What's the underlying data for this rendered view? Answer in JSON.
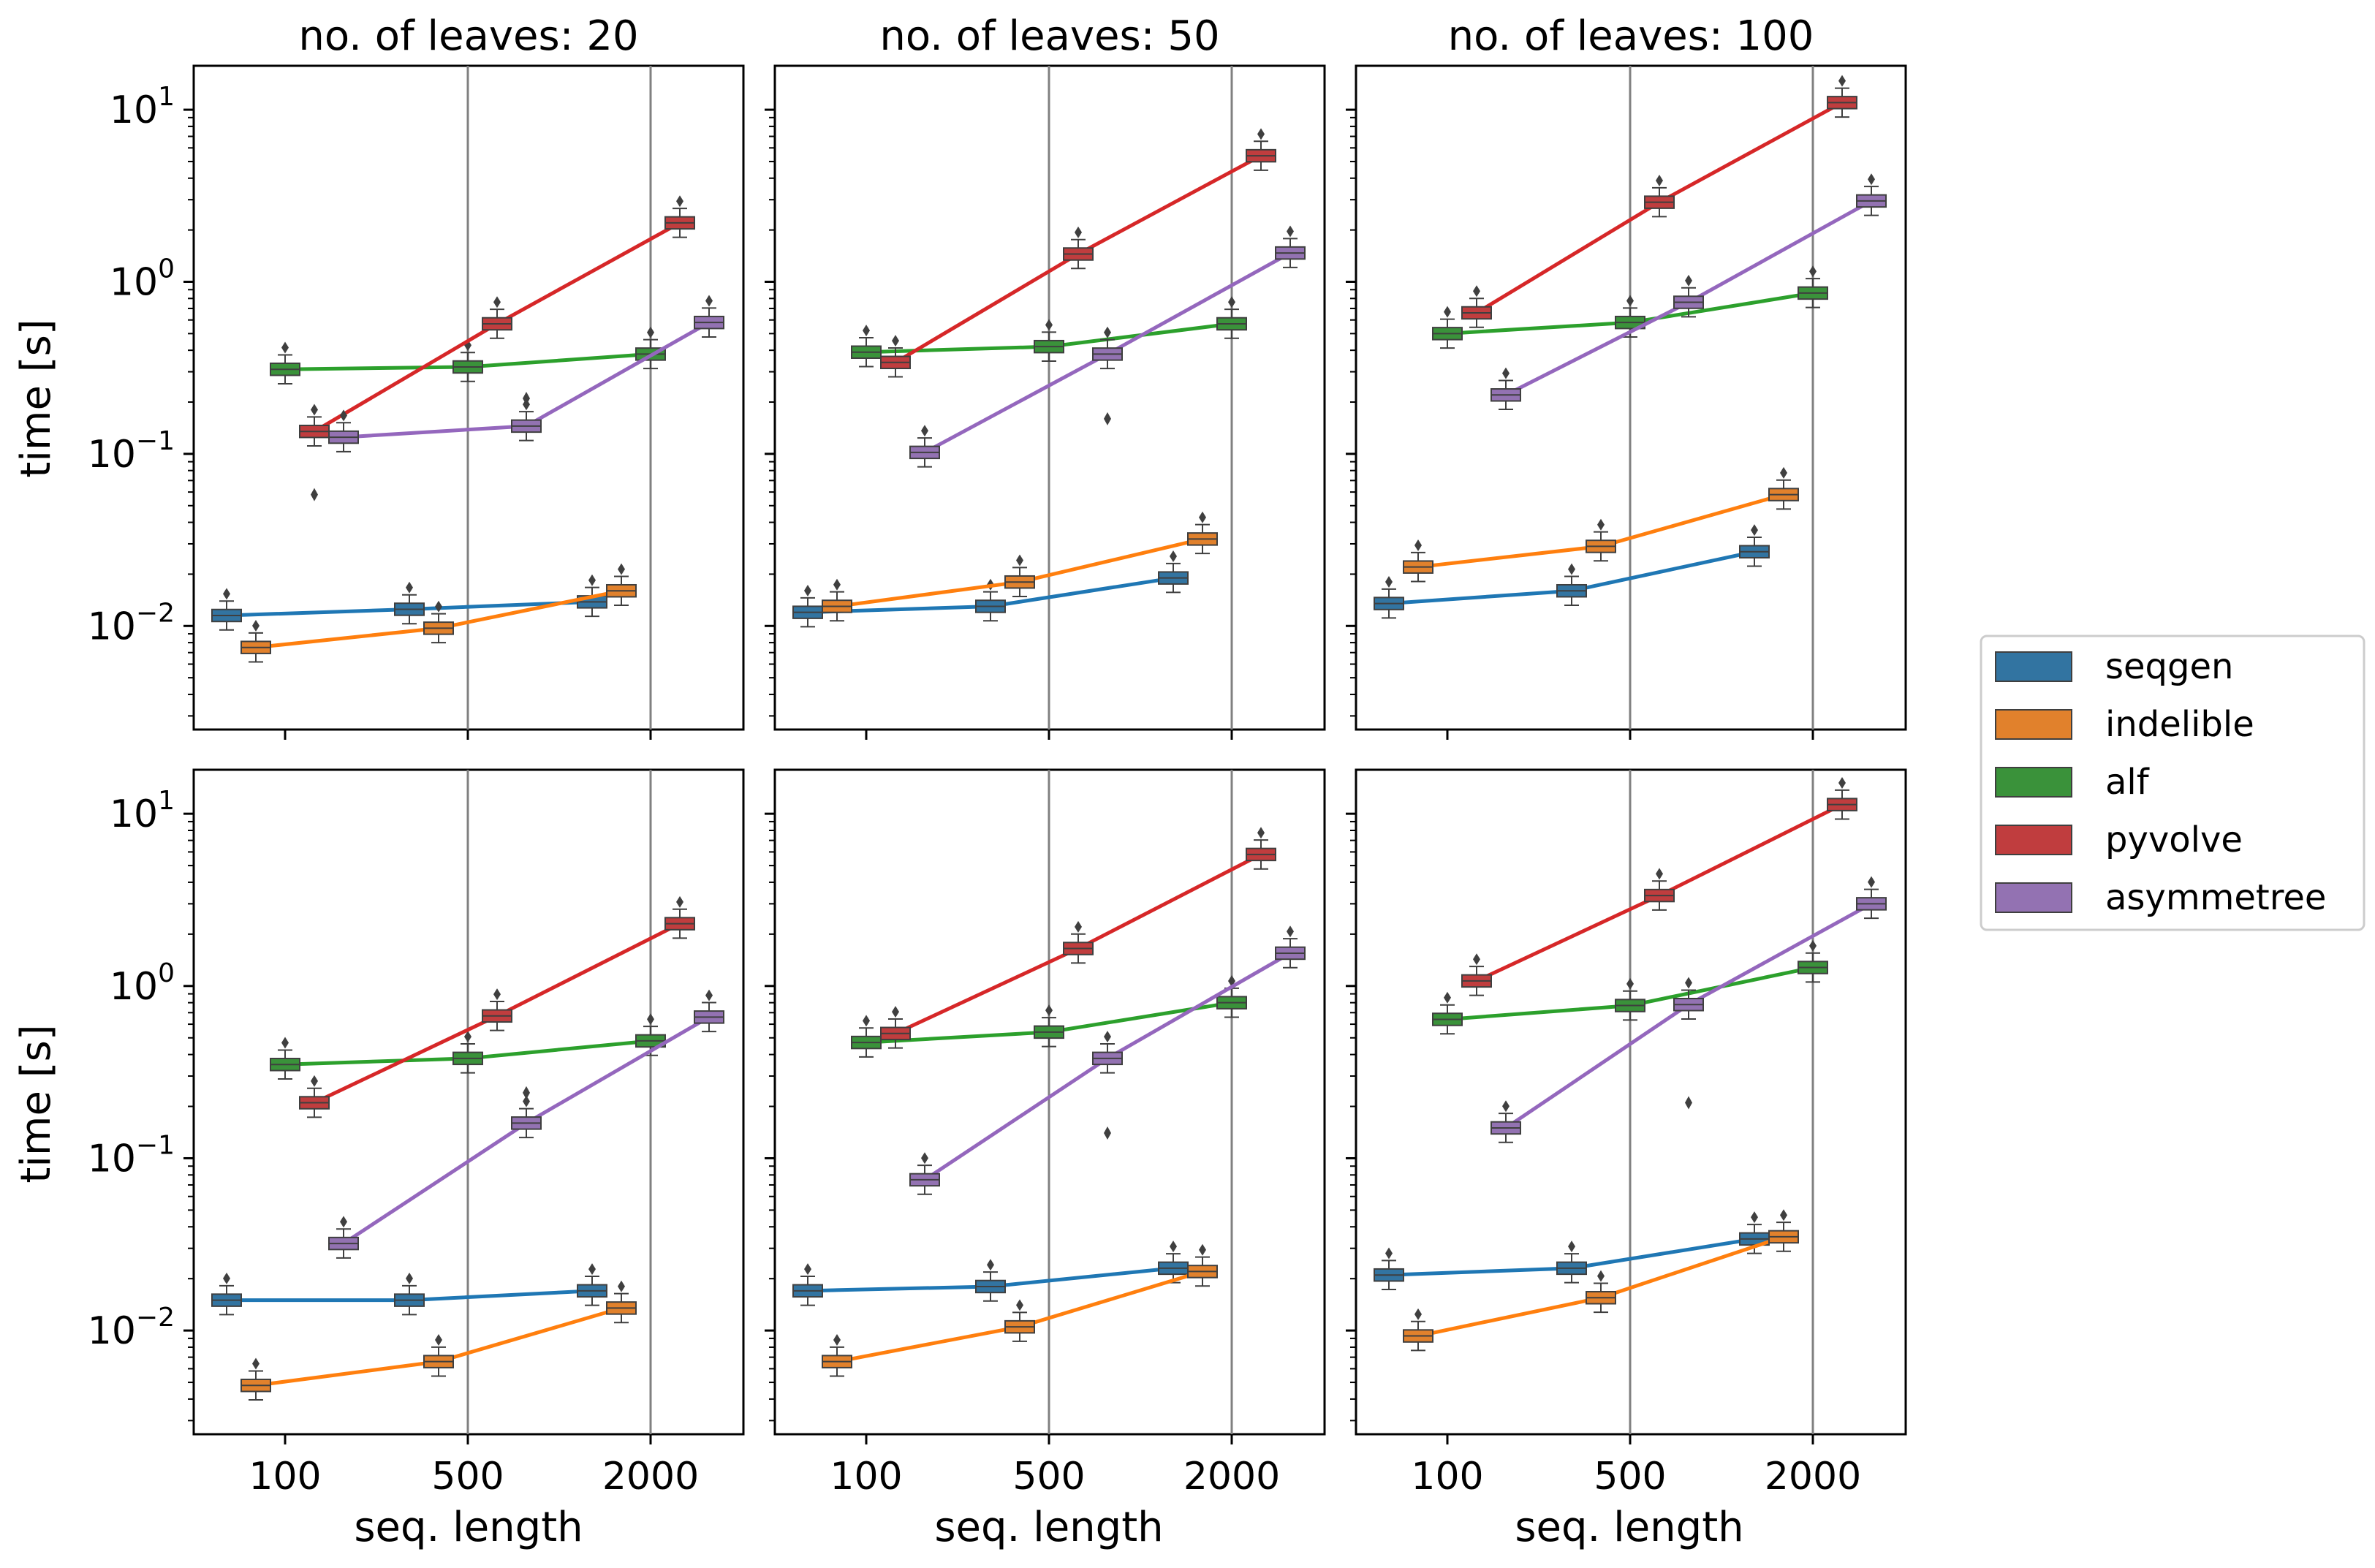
{
  "chart_data": {
    "type": "box-line",
    "ylabel": "time [s]",
    "xlabel": "seq. length",
    "yscale": "log",
    "ylim": [
      0.0025,
      18
    ],
    "ytick_values": [
      0.01,
      0.1,
      1,
      10
    ],
    "ytick_labels": [
      {
        "base": "10",
        "exp": "−2"
      },
      {
        "base": "10",
        "exp": "−1"
      },
      {
        "base": "10",
        "exp": "0"
      },
      {
        "base": "10",
        "exp": "1"
      }
    ],
    "x_categories": [
      "100",
      "500",
      "2000"
    ],
    "series": [
      {
        "name": "seqgen",
        "color": "#1f77b4",
        "box_color": "#3274a1"
      },
      {
        "name": "indelible",
        "color": "#ff7f0e",
        "box_color": "#e1812c"
      },
      {
        "name": "alf",
        "color": "#2ca02c",
        "box_color": "#3a923a"
      },
      {
        "name": "pyvolve",
        "color": "#d62728",
        "box_color": "#c03d3e"
      },
      {
        "name": "asymmetree",
        "color": "#9467bd",
        "box_color": "#9372b2"
      }
    ],
    "panels": [
      {
        "row": 0,
        "col": 0,
        "title": "no. of leaves: 20",
        "values": {
          "seqgen": [
            0.0115,
            0.0125,
            0.0138
          ],
          "indelible": [
            0.0075,
            0.0097,
            0.016
          ],
          "alf": [
            0.31,
            0.32,
            0.38
          ],
          "pyvolve": [
            0.135,
            0.57,
            2.2
          ],
          "asymmetree": [
            0.125,
            0.145,
            0.58
          ]
        },
        "outliers": {
          "pyvolve": [
            0.058
          ],
          "asymmetree": [
            0.21
          ]
        }
      },
      {
        "row": 0,
        "col": 1,
        "title": "no. of leaves: 50",
        "values": {
          "seqgen": [
            0.012,
            0.013,
            0.019
          ],
          "indelible": [
            0.013,
            0.018,
            0.032
          ],
          "alf": [
            0.39,
            0.42,
            0.57
          ],
          "pyvolve": [
            0.34,
            1.45,
            5.4
          ],
          "asymmetree": [
            0.102,
            0.38,
            1.47
          ]
        },
        "outliers": {
          "asymmetree": [
            0.16
          ]
        }
      },
      {
        "row": 0,
        "col": 2,
        "title": "no. of leaves: 100",
        "values": {
          "seqgen": [
            0.0135,
            0.016,
            0.027
          ],
          "indelible": [
            0.022,
            0.029,
            0.058
          ],
          "alf": [
            0.5,
            0.58,
            0.86
          ],
          "pyvolve": [
            0.66,
            2.9,
            11.0
          ],
          "asymmetree": [
            0.22,
            0.76,
            2.95
          ]
        },
        "outliers": {}
      },
      {
        "row": 1,
        "col": 0,
        "title": "",
        "values": {
          "seqgen": [
            0.015,
            0.015,
            0.017
          ],
          "indelible": [
            0.0048,
            0.0066,
            0.0135
          ],
          "alf": [
            0.35,
            0.38,
            0.48
          ],
          "pyvolve": [
            0.21,
            0.67,
            2.3
          ],
          "asymmetree": [
            0.032,
            0.16,
            0.66
          ]
        },
        "outliers": {
          "asymmetree": [
            0.24
          ]
        }
      },
      {
        "row": 1,
        "col": 1,
        "title": "",
        "values": {
          "seqgen": [
            0.017,
            0.018,
            0.023
          ],
          "indelible": [
            0.0066,
            0.0105,
            0.022
          ],
          "alf": [
            0.47,
            0.54,
            0.8
          ],
          "pyvolve": [
            0.53,
            1.65,
            5.8
          ],
          "asymmetree": [
            0.075,
            0.38,
            1.55
          ]
        },
        "outliers": {
          "asymmetree": [
            0.14
          ]
        }
      },
      {
        "row": 1,
        "col": 2,
        "title": "",
        "values": {
          "seqgen": [
            0.021,
            0.023,
            0.034
          ],
          "indelible": [
            0.0093,
            0.0155,
            0.035
          ],
          "alf": [
            0.64,
            0.77,
            1.28
          ],
          "pyvolve": [
            1.07,
            3.35,
            11.3
          ],
          "asymmetree": [
            0.15,
            0.78,
            3.0
          ]
        },
        "outliers": {
          "asymmetree": [
            0.21
          ]
        }
      }
    ]
  }
}
